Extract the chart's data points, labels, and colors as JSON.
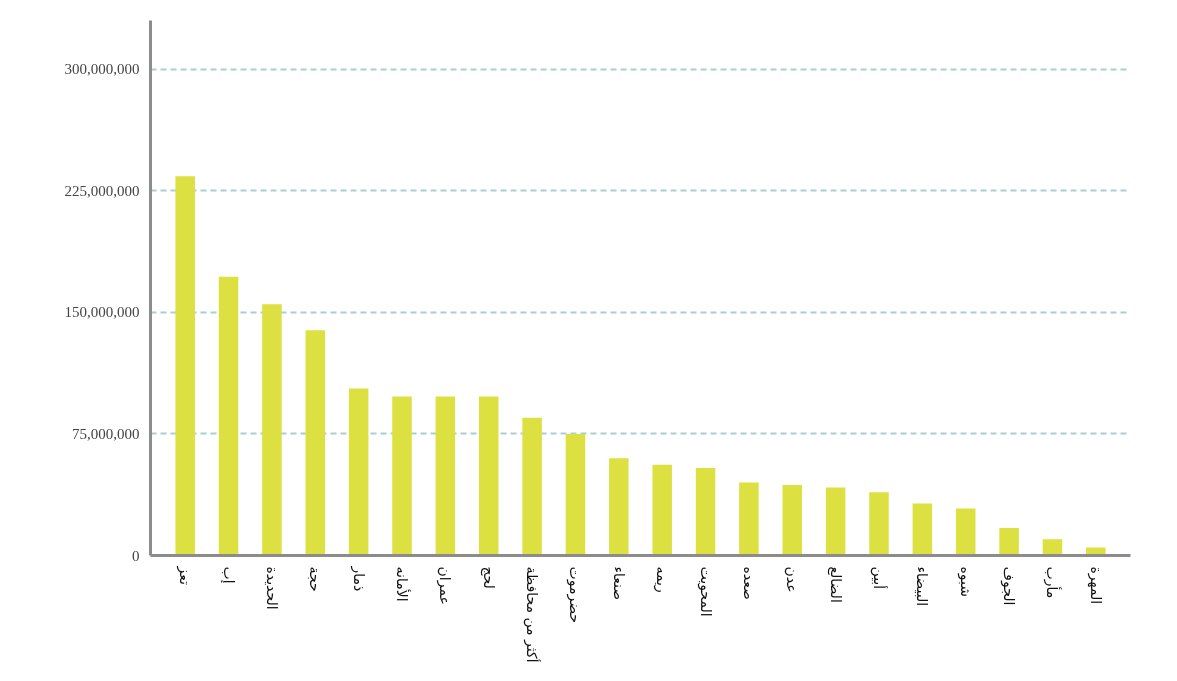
{
  "chart_data": {
    "type": "bar",
    "categories": [
      "تعز",
      "إب",
      "الحديدة",
      "حجة",
      "ذمار",
      "الأمانه",
      "عمران",
      "لحج",
      "أكثر من محافظة",
      "حضرموت",
      "صنعاء",
      "ريمه",
      "المحويت",
      "صعده",
      "عدن",
      "الضالع",
      "أبين",
      "البيضاء",
      "شبوه",
      "الجوف",
      "مأرب",
      "المهرة"
    ],
    "values": [
      234000000,
      172000000,
      155000000,
      139000000,
      103000000,
      98000000,
      98000000,
      98000000,
      85000000,
      75000000,
      60000000,
      56000000,
      54000000,
      45000000,
      43500000,
      42000000,
      39000000,
      32000000,
      29000000,
      17000000,
      10000000,
      5000000
    ],
    "color": "#dce141",
    "ylim": [
      0,
      330000000
    ],
    "yticks": [
      {
        "value": 0,
        "label": "0"
      },
      {
        "value": 75000000,
        "label": "75,000,000"
      },
      {
        "value": 150000000,
        "label": "150,000,000"
      },
      {
        "value": 225000000,
        "label": "225,000,000"
      },
      {
        "value": 300000000,
        "label": "300,000,000"
      }
    ],
    "grid": "y"
  }
}
